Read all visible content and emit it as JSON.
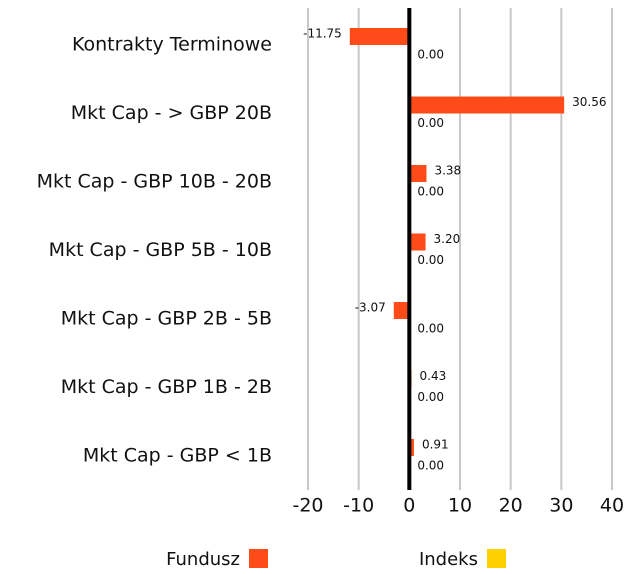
{
  "chart_data": {
    "type": "hbar",
    "categories": [
      "Kontrakty Terminowe",
      "Mkt Cap - > GBP 20B",
      "Mkt Cap - GBP 10B - 20B",
      "Mkt Cap - GBP 5B - 10B",
      "Mkt Cap - GBP 2B - 5B",
      "Mkt Cap - GBP 1B - 2B",
      "Mkt Cap - GBP < 1B"
    ],
    "series": [
      {
        "name": "Fundusz",
        "color": "#ff4b17",
        "values": [
          -11.75,
          30.56,
          3.38,
          3.2,
          -3.07,
          0.43,
          0.91
        ],
        "value_labels": [
          "-11.75",
          "30.56",
          "3.38",
          "3.20",
          "-3.07",
          "0.43",
          "0.91"
        ]
      },
      {
        "name": "Indeks",
        "color": "#ffd100",
        "values": [
          0,
          0,
          0,
          0,
          0,
          0,
          0
        ],
        "value_labels": [
          "0.00",
          "0.00",
          "0.00",
          "0.00",
          "0.00",
          "0.00",
          "0.00"
        ]
      }
    ],
    "xlim": [
      -20,
      40
    ],
    "xticks": [
      -20,
      -10,
      0,
      10,
      20,
      30,
      40
    ],
    "grid": true,
    "legend": "bottom"
  }
}
